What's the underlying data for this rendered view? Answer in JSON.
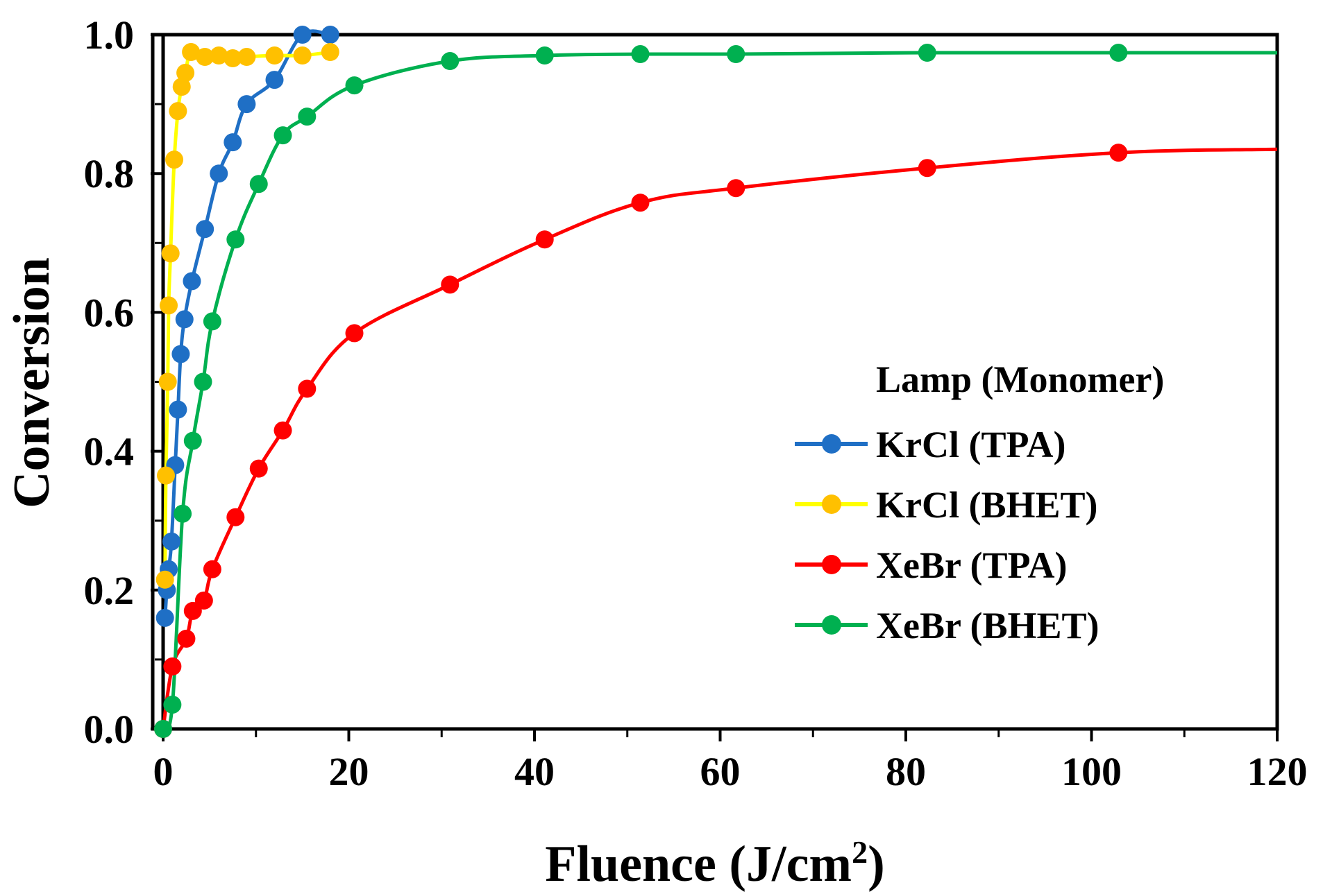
{
  "chart_data": {
    "type": "line",
    "title": "",
    "xlabel": "Fluence (J/cm",
    "xlabel_sup": "2",
    "xlabel_close": ")",
    "ylabel": "Conversion",
    "xlim": [
      0,
      120
    ],
    "ylim": [
      0,
      1.0
    ],
    "x_ticks": [
      0,
      20,
      40,
      60,
      80,
      100,
      120
    ],
    "x_tick_labels": [
      "0",
      "20",
      "40",
      "60",
      "80",
      "100",
      "120"
    ],
    "x_minor_ticks": [
      10,
      30,
      50,
      70,
      90,
      110
    ],
    "y_ticks": [
      0.0,
      0.2,
      0.4,
      0.6,
      0.8,
      1.0
    ],
    "y_tick_labels": [
      "0.0",
      "0.2",
      "0.4",
      "0.6",
      "0.8",
      "1.0"
    ],
    "y_minor_ticks": [
      0.1,
      0.3,
      0.5,
      0.7,
      0.9
    ],
    "grid": false,
    "legend": {
      "title": "Lamp (Monomer)",
      "placement": "right-center"
    },
    "series": [
      {
        "name": "KrCl (TPA)",
        "color": "#1f6fc5",
        "points": [
          [
            0.2,
            0.16
          ],
          [
            0.4,
            0.2
          ],
          [
            0.6,
            0.23
          ],
          [
            0.9,
            0.27
          ],
          [
            1.3,
            0.38
          ],
          [
            1.6,
            0.46
          ],
          [
            1.9,
            0.54
          ],
          [
            2.3,
            0.59
          ],
          [
            3.1,
            0.645
          ],
          [
            4.5,
            0.72
          ],
          [
            6.0,
            0.8
          ],
          [
            7.5,
            0.845
          ],
          [
            9.0,
            0.9
          ],
          [
            12.0,
            0.935
          ],
          [
            15.0,
            1.0
          ],
          [
            18.0,
            1.0
          ]
        ],
        "tail": []
      },
      {
        "name": "KrCl (BHET)",
        "color": "#ffc000",
        "line_color": "#ffff00",
        "points": [
          [
            0.2,
            0.215
          ],
          [
            0.3,
            0.365
          ],
          [
            0.5,
            0.5
          ],
          [
            0.6,
            0.61
          ],
          [
            0.8,
            0.685
          ],
          [
            1.2,
            0.82
          ],
          [
            1.6,
            0.89
          ],
          [
            2.0,
            0.925
          ],
          [
            2.4,
            0.945
          ],
          [
            3.0,
            0.975
          ],
          [
            4.5,
            0.968
          ],
          [
            6.0,
            0.97
          ],
          [
            7.5,
            0.966
          ],
          [
            9.0,
            0.968
          ],
          [
            12.0,
            0.97
          ],
          [
            15.0,
            0.97
          ],
          [
            18.0,
            0.975
          ]
        ],
        "tail": []
      },
      {
        "name": "XeBr (TPA)",
        "color": "#ff0000",
        "points": [
          [
            0.0,
            0.0
          ],
          [
            1.0,
            0.09
          ],
          [
            2.5,
            0.13
          ],
          [
            3.2,
            0.17
          ],
          [
            4.4,
            0.185
          ],
          [
            5.3,
            0.23
          ],
          [
            7.8,
            0.305
          ],
          [
            10.3,
            0.375
          ],
          [
            12.9,
            0.43
          ],
          [
            15.5,
            0.49
          ],
          [
            20.6,
            0.57
          ],
          [
            30.9,
            0.64
          ],
          [
            41.1,
            0.705
          ],
          [
            51.4,
            0.758
          ],
          [
            61.7,
            0.779
          ],
          [
            82.3,
            0.808
          ],
          [
            102.9,
            0.83
          ]
        ],
        "tail": [
          120.0,
          0.835
        ]
      },
      {
        "name": "XeBr (BHET)",
        "color": "#00b050",
        "points": [
          [
            0.0,
            0.0
          ],
          [
            1.0,
            0.035
          ],
          [
            2.1,
            0.31
          ],
          [
            3.2,
            0.415
          ],
          [
            4.3,
            0.5
          ],
          [
            5.3,
            0.587
          ],
          [
            7.8,
            0.705
          ],
          [
            10.3,
            0.785
          ],
          [
            12.9,
            0.855
          ],
          [
            15.5,
            0.882
          ],
          [
            20.6,
            0.927
          ],
          [
            30.9,
            0.962
          ],
          [
            41.1,
            0.97
          ],
          [
            51.4,
            0.972
          ],
          [
            61.7,
            0.972
          ],
          [
            82.3,
            0.974
          ],
          [
            102.9,
            0.974
          ]
        ],
        "tail": [
          120.0,
          0.974
        ]
      }
    ]
  }
}
